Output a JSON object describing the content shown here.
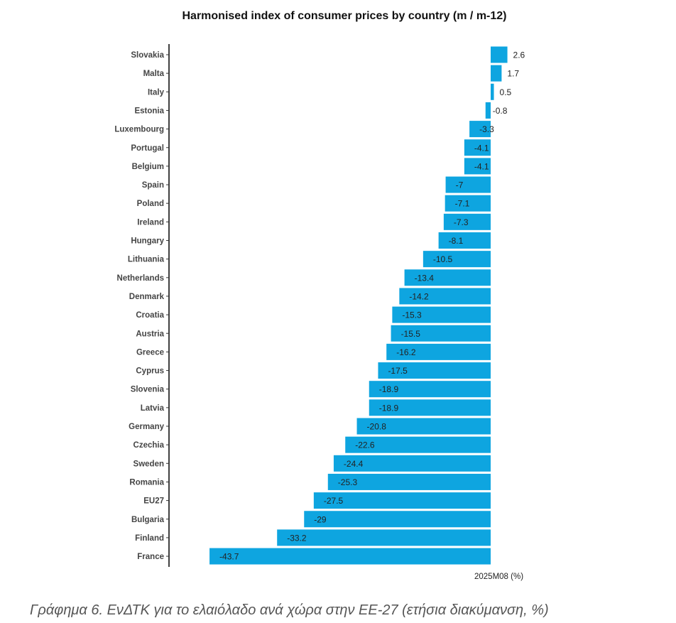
{
  "chart_data": {
    "type": "bar",
    "orientation": "horizontal",
    "title": "Harmonised index of consumer prices by country (m / m-12)",
    "xlabel": "2025M08 (%)",
    "ylabel": "",
    "bar_color": "#0ea5e0",
    "categories": [
      "Slovakia",
      "Malta",
      "Italy",
      "Estonia",
      "Luxembourg",
      "Portugal",
      "Belgium",
      "Spain",
      "Poland",
      "Ireland",
      "Hungary",
      "Lithuania",
      "Netherlands",
      "Denmark",
      "Croatia",
      "Austria",
      "Greece",
      "Cyprus",
      "Slovenia",
      "Latvia",
      "Germany",
      "Czechia",
      "Sweden",
      "Romania",
      "EU27",
      "Bulgaria",
      "Finland",
      "France"
    ],
    "values": [
      2.6,
      1.7,
      0.5,
      -0.8,
      -3.3,
      -4.1,
      -4.1,
      -7,
      -7.1,
      -7.3,
      -8.1,
      -10.5,
      -13.4,
      -14.2,
      -15.3,
      -15.5,
      -16.2,
      -17.5,
      -18.9,
      -18.9,
      -20.8,
      -22.6,
      -24.4,
      -25.3,
      -27.5,
      -29,
      -33.2,
      -43.7
    ],
    "xlim": [
      -48,
      5
    ]
  },
  "caption": "Γράφημα 6. ΕνΔΤΚ για το ελαιόλαδο ανά χώρα στην ΕΕ-27 (ετήσια διακύμανση, %)"
}
